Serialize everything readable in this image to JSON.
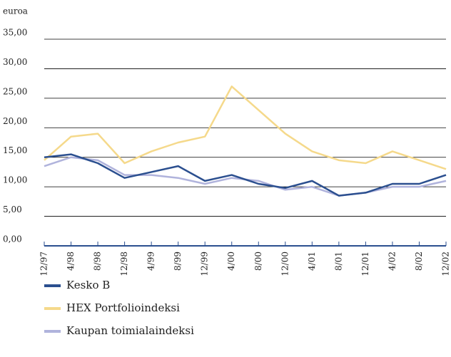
{
  "chart_data": {
    "type": "line",
    "y_axis_label": "euroa",
    "categories": [
      "12/97",
      "4/98",
      "8/98",
      "12/98",
      "4/99",
      "8/99",
      "12/99",
      "4/00",
      "8/00",
      "12/00",
      "4/01",
      "8/01",
      "12/01",
      "4/02",
      "8/02",
      "12/02"
    ],
    "series": [
      {
        "name": "Kesko B",
        "color": "#2b4f8f",
        "values": [
          15,
          15.5,
          14,
          11.5,
          12.5,
          13.5,
          11,
          12,
          10.5,
          9.8,
          11,
          8.5,
          9,
          10.5,
          10.5,
          12
        ]
      },
      {
        "name": "HEX Portfolioindeksi",
        "color": "#f5d98b",
        "values": [
          14.5,
          18.5,
          19,
          14,
          16,
          17.5,
          18.5,
          27,
          23,
          19,
          16,
          14.5,
          14,
          16,
          14.5,
          13
        ]
      },
      {
        "name": "Kaupan toimialaindeksi",
        "color": "#b0b3dc",
        "values": [
          13.5,
          15,
          14.5,
          12,
          12,
          11.5,
          10.5,
          11.5,
          11,
          9.5,
          10,
          8.5,
          9,
          10,
          10,
          11
        ]
      }
    ],
    "ylim": [
      0,
      35
    ],
    "yticks": [
      {
        "value": 0,
        "label": "0,00"
      },
      {
        "value": 5,
        "label": "5,00"
      },
      {
        "value": 10,
        "label": "10,00"
      },
      {
        "value": 15,
        "label": "15,00"
      },
      {
        "value": 20,
        "label": "20,00"
      },
      {
        "value": 25,
        "label": "25,00"
      },
      {
        "value": 30,
        "label": "30,00"
      },
      {
        "value": 35,
        "label": "35,00"
      }
    ],
    "grid": true
  }
}
